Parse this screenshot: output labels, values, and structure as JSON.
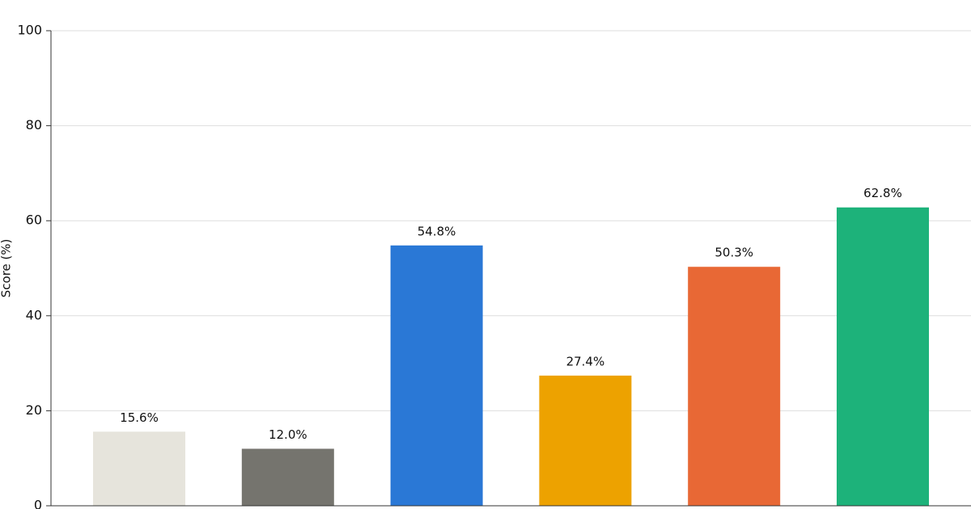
{
  "chart_data": {
    "type": "bar",
    "y_label": "Score (%)",
    "categories": [
      null,
      null,
      null,
      null,
      null,
      null
    ],
    "values": [
      15.6,
      12.0,
      54.8,
      27.4,
      50.3,
      62.8
    ],
    "value_labels": [
      "15.6%",
      "12.0%",
      "54.8%",
      "27.4%",
      "50.3%",
      "62.8%"
    ],
    "colors": [
      "#e6e4dc",
      "#75746e",
      "#2a78d6",
      "#eda200",
      "#e86835",
      "#1db27a"
    ],
    "ylim": [
      0,
      100
    ],
    "yticks": [
      0,
      20,
      40,
      60,
      80,
      100
    ],
    "grid": true
  }
}
